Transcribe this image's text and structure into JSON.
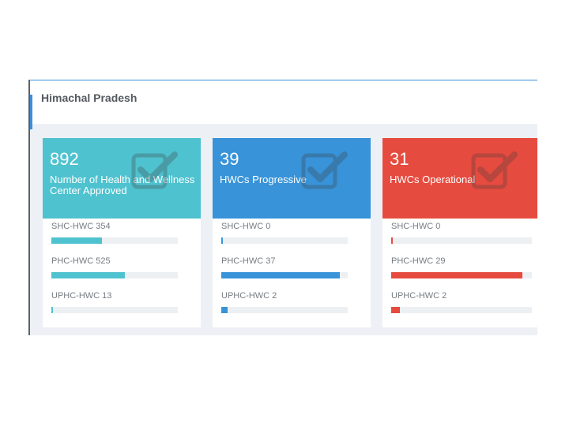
{
  "page": {
    "title": "Himachal Pradesh"
  },
  "colors": {
    "teal": "#4fc2cf",
    "blue": "#3893d8",
    "red": "#e64b3f"
  },
  "cards": [
    {
      "value": "892",
      "label": "Number of Health and Wellness\nCenter Approved",
      "color": "#4fc2cf",
      "icon": "checkbox-check-icon",
      "rows": [
        {
          "label": "SHC-HWC 354",
          "progress": 0.4
        },
        {
          "label": "PHC-HWC 525",
          "progress": 0.58
        },
        {
          "label": "UPHC-HWC 13",
          "progress": 0.01
        }
      ]
    },
    {
      "value": "39",
      "label": "HWCs Progressive",
      "color": "#3893d8",
      "icon": "checkbox-check-icon",
      "rows": [
        {
          "label": "SHC-HWC 0",
          "progress": 0.0
        },
        {
          "label": "PHC-HWC 37",
          "progress": 0.94
        },
        {
          "label": "UPHC-HWC 2",
          "progress": 0.05
        }
      ]
    },
    {
      "value": "31",
      "label": "HWCs Operational",
      "color": "#e64b3f",
      "icon": "checkbox-check-icon",
      "rows": [
        {
          "label": "SHC-HWC 0",
          "progress": 0.0
        },
        {
          "label": "PHC-HWC 29",
          "progress": 0.93
        },
        {
          "label": "UPHC-HWC 2",
          "progress": 0.06
        }
      ]
    }
  ]
}
